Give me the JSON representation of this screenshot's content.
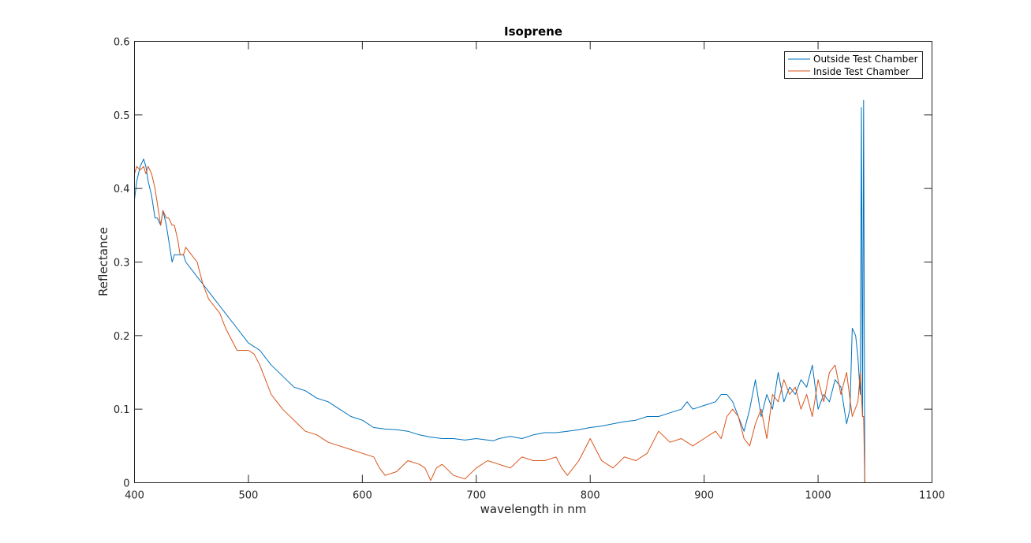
{
  "chart_data": {
    "type": "line",
    "title": "Isoprene",
    "xlabel": "wavelength in nm",
    "ylabel": "Reflectance",
    "xlim": [
      400,
      1100
    ],
    "ylim": [
      0,
      0.6
    ],
    "xticks": [
      400,
      500,
      600,
      700,
      800,
      900,
      1000,
      1100
    ],
    "yticks": [
      0,
      0.1,
      0.2,
      0.3,
      0.4,
      0.5,
      0.6
    ],
    "xtick_labels": [
      "400",
      "500",
      "600",
      "700",
      "800",
      "900",
      "1000",
      "1100"
    ],
    "ytick_labels": [
      "0",
      "0.1",
      "0.2",
      "0.3",
      "0.4",
      "0.5",
      "0.6"
    ],
    "grid": false,
    "legend_position": "top-right",
    "series": [
      {
        "name": "Outside Test Chamber",
        "color": "#0072BD",
        "x": [
          400,
          402,
          405,
          408,
          410,
          412,
          415,
          418,
          420,
          423,
          425,
          428,
          430,
          433,
          435,
          438,
          440,
          443,
          445,
          450,
          455,
          460,
          465,
          470,
          475,
          480,
          490,
          500,
          510,
          520,
          530,
          540,
          550,
          560,
          570,
          580,
          590,
          600,
          610,
          620,
          630,
          640,
          650,
          660,
          670,
          680,
          690,
          700,
          710,
          715,
          720,
          730,
          740,
          750,
          760,
          770,
          780,
          790,
          800,
          810,
          820,
          830,
          840,
          850,
          860,
          870,
          880,
          885,
          890,
          900,
          910,
          915,
          920,
          925,
          930,
          935,
          940,
          945,
          950,
          955,
          960,
          965,
          970,
          975,
          980,
          985,
          990,
          995,
          1000,
          1005,
          1010,
          1015,
          1020,
          1025,
          1028,
          1030,
          1033,
          1035,
          1037,
          1038,
          1039,
          1040,
          1041,
          1042
        ],
        "y": [
          0.385,
          0.41,
          0.43,
          0.44,
          0.43,
          0.41,
          0.39,
          0.36,
          0.36,
          0.35,
          0.37,
          0.35,
          0.33,
          0.3,
          0.31,
          0.31,
          0.31,
          0.31,
          0.3,
          0.29,
          0.28,
          0.27,
          0.26,
          0.25,
          0.24,
          0.23,
          0.21,
          0.19,
          0.18,
          0.16,
          0.145,
          0.13,
          0.125,
          0.115,
          0.11,
          0.1,
          0.09,
          0.085,
          0.075,
          0.073,
          0.072,
          0.07,
          0.065,
          0.062,
          0.06,
          0.06,
          0.058,
          0.06,
          0.058,
          0.057,
          0.06,
          0.063,
          0.06,
          0.065,
          0.068,
          0.068,
          0.07,
          0.072,
          0.075,
          0.077,
          0.08,
          0.083,
          0.085,
          0.09,
          0.09,
          0.095,
          0.1,
          0.11,
          0.1,
          0.105,
          0.11,
          0.12,
          0.12,
          0.11,
          0.09,
          0.07,
          0.1,
          0.14,
          0.09,
          0.12,
          0.1,
          0.15,
          0.11,
          0.13,
          0.12,
          0.14,
          0.13,
          0.16,
          0.1,
          0.12,
          0.11,
          0.14,
          0.13,
          0.08,
          0.1,
          0.21,
          0.2,
          0.17,
          0.12,
          0.51,
          0.09,
          0.52,
          0.0,
          0.0
        ]
      },
      {
        "name": "Inside Test Chamber",
        "color": "#D95319",
        "x": [
          400,
          402,
          405,
          408,
          410,
          412,
          415,
          418,
          420,
          423,
          425,
          428,
          430,
          433,
          435,
          438,
          440,
          443,
          445,
          450,
          455,
          460,
          465,
          470,
          475,
          480,
          490,
          500,
          505,
          510,
          520,
          530,
          540,
          550,
          560,
          570,
          580,
          590,
          600,
          610,
          615,
          620,
          630,
          640,
          650,
          655,
          660,
          665,
          670,
          680,
          690,
          700,
          710,
          720,
          730,
          740,
          750,
          760,
          770,
          775,
          780,
          790,
          800,
          810,
          820,
          830,
          840,
          850,
          860,
          870,
          880,
          890,
          900,
          910,
          915,
          920,
          925,
          930,
          935,
          940,
          945,
          950,
          955,
          960,
          965,
          970,
          975,
          980,
          985,
          990,
          995,
          1000,
          1005,
          1010,
          1015,
          1020,
          1025,
          1030,
          1035,
          1037,
          1039,
          1040,
          1041
        ],
        "y": [
          0.42,
          0.43,
          0.425,
          0.43,
          0.42,
          0.43,
          0.42,
          0.4,
          0.38,
          0.35,
          0.37,
          0.36,
          0.36,
          0.35,
          0.35,
          0.33,
          0.31,
          0.31,
          0.32,
          0.31,
          0.3,
          0.27,
          0.25,
          0.24,
          0.23,
          0.21,
          0.18,
          0.18,
          0.175,
          0.16,
          0.12,
          0.1,
          0.085,
          0.07,
          0.065,
          0.055,
          0.05,
          0.045,
          0.04,
          0.035,
          0.02,
          0.01,
          0.015,
          0.03,
          0.025,
          0.02,
          0.003,
          0.02,
          0.025,
          0.01,
          0.005,
          0.02,
          0.03,
          0.025,
          0.02,
          0.035,
          0.03,
          0.03,
          0.035,
          0.02,
          0.01,
          0.03,
          0.06,
          0.03,
          0.02,
          0.035,
          0.03,
          0.04,
          0.07,
          0.055,
          0.06,
          0.05,
          0.06,
          0.07,
          0.06,
          0.09,
          0.1,
          0.09,
          0.06,
          0.05,
          0.08,
          0.1,
          0.06,
          0.12,
          0.11,
          0.14,
          0.12,
          0.13,
          0.1,
          0.12,
          0.09,
          0.14,
          0.11,
          0.15,
          0.16,
          0.12,
          0.15,
          0.09,
          0.11,
          0.15,
          0.09,
          0.09,
          0.0
        ]
      }
    ]
  }
}
